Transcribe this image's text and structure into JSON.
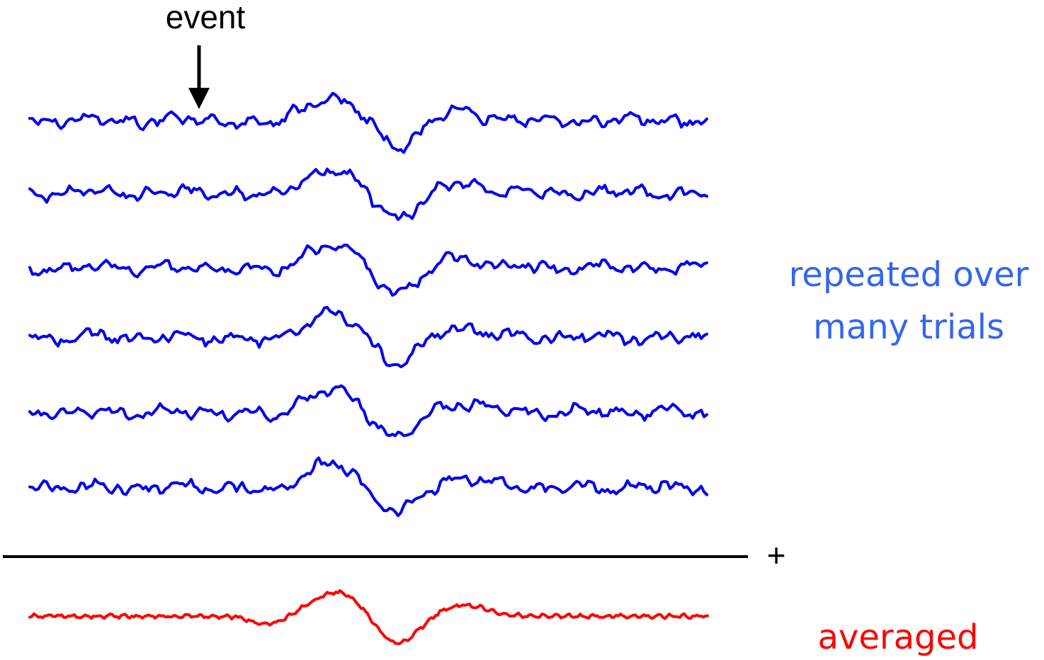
{
  "event_label": "event",
  "repeated_label_line1": "repeated over",
  "repeated_label_line2": "many trials",
  "plus_label": "+",
  "averaged_label": "averaged",
  "colors": {
    "trial_trace": "#0000ee",
    "trial_text": "#3366ee",
    "average": "#ff0000",
    "axis": "#000000"
  },
  "trial_count": 6
}
